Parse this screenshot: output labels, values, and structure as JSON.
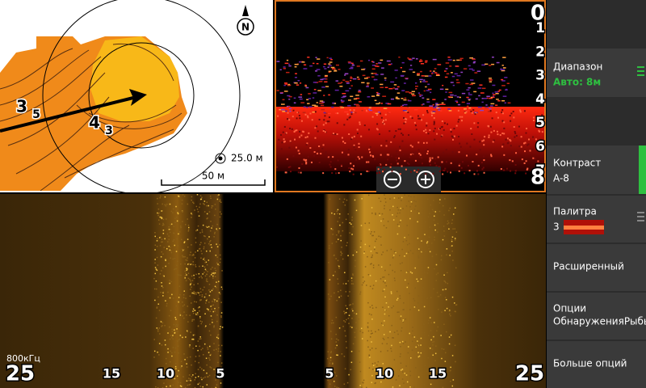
{
  "map": {
    "contour_labels": [
      "3",
      "5",
      "4",
      "3"
    ],
    "compass": "N",
    "range_ring": "25.0 м",
    "scale": "50 м"
  },
  "sonar": {
    "depth_scale": [
      "0",
      "1",
      "2",
      "3",
      "4",
      "5",
      "6",
      "7",
      "8"
    ]
  },
  "side_scan": {
    "frequency": "800кГц",
    "left_scale": [
      "25",
      "15",
      "10",
      "5"
    ],
    "right_scale": [
      "5",
      "10",
      "15",
      "25"
    ]
  },
  "menu": {
    "items": [
      {
        "label": "Диапазон",
        "value": "Авто: 8м"
      },
      {
        "label": "Контраст",
        "value": "A-8"
      },
      {
        "label": "Палитра",
        "value": "3"
      },
      {
        "label": "Расширенный"
      },
      {
        "lines": [
          "Опции",
          "ОбнаруженияРыбы"
        ]
      },
      {
        "label": "Больше опций"
      }
    ]
  }
}
